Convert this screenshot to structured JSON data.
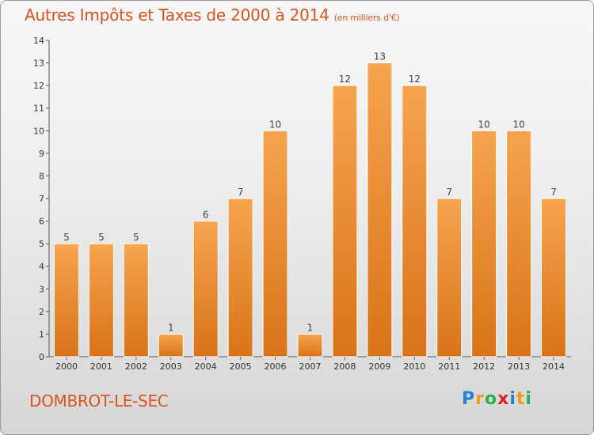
{
  "title": "Autres Impôts et Taxes de 2000 à 2014",
  "unit": "(en milliers d'€)",
  "commune": "DOMBROT-LE-SEC",
  "logo": {
    "letters": [
      "P",
      "r",
      "o",
      "x",
      "i",
      "t",
      "i"
    ],
    "colors": [
      "#2a7fd0",
      "#f39a1e",
      "#2bb24c",
      "#e02020",
      "#2a7fd0",
      "#f39a1e",
      "#2bb24c"
    ]
  },
  "colors": {
    "title": "#d9531e",
    "bar_top": "#f6a44f",
    "bar_bottom": "#d97318",
    "axis": "#555555"
  },
  "chart_data": {
    "type": "bar",
    "categories": [
      "2000",
      "2001",
      "2002",
      "2003",
      "2004",
      "2005",
      "2006",
      "2007",
      "2008",
      "2009",
      "2010",
      "2011",
      "2012",
      "2013",
      "2014"
    ],
    "values": [
      5,
      5,
      5,
      1,
      6,
      7,
      10,
      1,
      12,
      13,
      12,
      7,
      10,
      10,
      7
    ],
    "title": "Autres Impôts et Taxes de 2000 à 2014",
    "xlabel": "",
    "ylabel": "",
    "ylim": [
      0,
      14
    ],
    "yticks": [
      0,
      1,
      2,
      3,
      4,
      5,
      6,
      7,
      8,
      9,
      10,
      11,
      12,
      13,
      14
    ],
    "grid": false,
    "data_labels": true
  }
}
